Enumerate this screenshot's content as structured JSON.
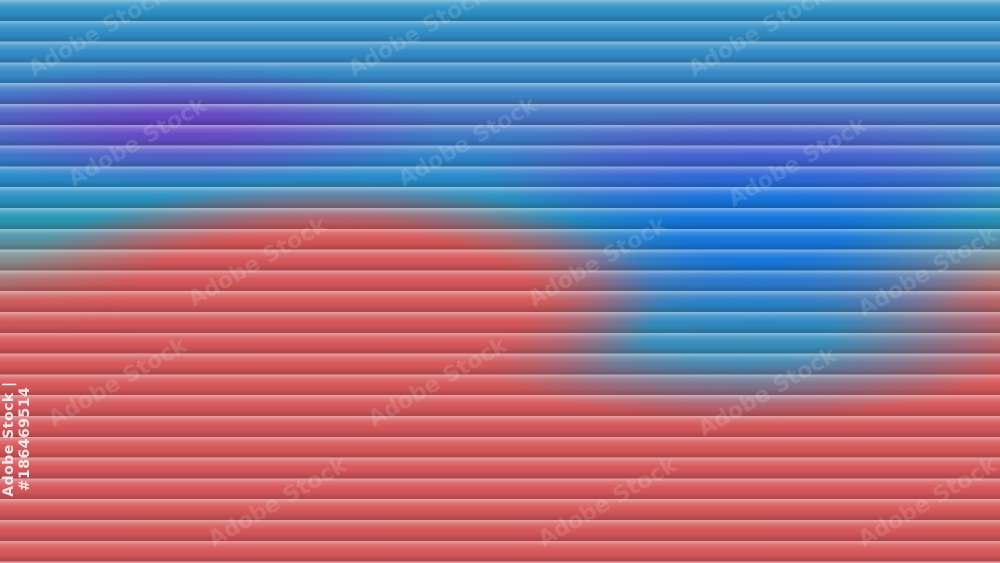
{
  "watermark": {
    "text": "Adobe Stock",
    "id_text": "Adobe Stock | #186469514"
  },
  "colors": {
    "top_blue": "#2d93c6",
    "purple": "#6e46c8",
    "bright_blue": "#1478e1",
    "red": "#d85a5c"
  }
}
